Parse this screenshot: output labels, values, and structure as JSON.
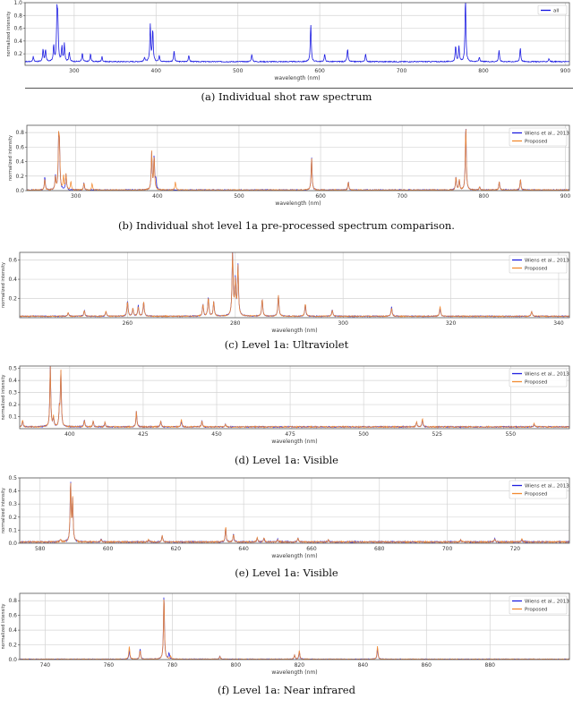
{
  "colors": {
    "wiens": "#1f1fe0",
    "proposed": "#f28a30",
    "raw": "#1010e0",
    "grid": "#d4d4d4",
    "frame": "#555555"
  },
  "panels": [
    {
      "id": "a",
      "caption": "(a) Individual shot raw spectrum",
      "xlabel": "wavelength (nm)",
      "ylabel": "normalized intensity",
      "legend": [
        "all"
      ]
    },
    {
      "id": "b",
      "caption": "(b) Individual shot level 1a pre-processed spectrum comparison.",
      "xlabel": "wavelength (nm)",
      "ylabel": "normalized intensity",
      "legend": [
        "Wiens et al., 2013",
        "Proposed"
      ]
    },
    {
      "id": "c",
      "caption": "(c) Level 1a: Ultraviolet",
      "xlabel": "wavelength (nm)",
      "ylabel": "normalized intensity",
      "legend": [
        "Wiens et al., 2013",
        "Proposed"
      ]
    },
    {
      "id": "d",
      "caption": "(d) Level 1a: Visible",
      "xlabel": "wavelength (nm)",
      "ylabel": "normalized intensity",
      "legend": [
        "Wiens et al., 2013",
        "Proposed"
      ]
    },
    {
      "id": "e",
      "caption": "(e) Level 1a: Visible",
      "xlabel": "wavelength (nm)",
      "ylabel": "normalized intensity",
      "legend": [
        "Wiens et al., 2013",
        "Proposed"
      ]
    },
    {
      "id": "f",
      "caption": "(f) Level 1a: Near infrared",
      "xlabel": "wavelength (nm)",
      "ylabel": "normalized intensity",
      "legend": [
        "Wiens et al., 2013",
        "Proposed"
      ]
    }
  ],
  "chart_data": [
    {
      "type": "line",
      "title": "(a) Individual shot raw spectrum",
      "xlabel": "wavelength (nm)",
      "ylabel": "normalized intensity",
      "xlim": [
        240,
        905
      ],
      "ylim": [
        0.02,
        1.0
      ],
      "xticks": [
        300,
        400,
        500,
        600,
        700,
        800,
        900
      ],
      "yticks": [
        0.2,
        0.4,
        0.6,
        0.8,
        1.0
      ],
      "grid": true,
      "legend_position": "upper right",
      "series": [
        {
          "name": "all",
          "color": "#1010e0",
          "peaks": [
            [
              250,
              0.08
            ],
            [
              262,
              0.2
            ],
            [
              265,
              0.18
            ],
            [
              275,
              0.25
            ],
            [
              279,
              0.72
            ],
            [
              280,
              0.57
            ],
            [
              285,
              0.23
            ],
            [
              288,
              0.28
            ],
            [
              294,
              0.15
            ],
            [
              310,
              0.13
            ],
            [
              320,
              0.12
            ],
            [
              334,
              0.08
            ],
            [
              386,
              0.07
            ],
            [
              393,
              0.57
            ],
            [
              396,
              0.5
            ],
            [
              404,
              0.1
            ],
            [
              422,
              0.17
            ],
            [
              440,
              0.1
            ],
            [
              517,
              0.12
            ],
            [
              589,
              0.59
            ],
            [
              606,
              0.12
            ],
            [
              634,
              0.2
            ],
            [
              656,
              0.12
            ],
            [
              766,
              0.25
            ],
            [
              770,
              0.24
            ],
            [
              778,
              1.0
            ],
            [
              795,
              0.07
            ],
            [
              819,
              0.18
            ],
            [
              845,
              0.22
            ],
            [
              880,
              0.05
            ]
          ]
        }
      ]
    },
    {
      "type": "line",
      "title": "(b) Individual shot level 1a pre-processed spectrum comparison.",
      "xlabel": "wavelength (nm)",
      "ylabel": "normalized intensity",
      "xlim": [
        240,
        905
      ],
      "ylim": [
        0.0,
        0.9
      ],
      "xticks": [
        300,
        400,
        500,
        600,
        700,
        800,
        900
      ],
      "yticks": [
        0.0,
        0.2,
        0.4,
        0.6,
        0.8
      ],
      "grid": true,
      "legend_position": "upper right",
      "series": [
        {
          "name": "Wiens et al., 2013",
          "color": "#1f1fe0",
          "peaks": [
            [
              262,
              0.18
            ],
            [
              275,
              0.2
            ],
            [
              279,
              0.65
            ],
            [
              280,
              0.5
            ],
            [
              288,
              0.22
            ],
            [
              310,
              0.1
            ],
            [
              393,
              0.51
            ],
            [
              396,
              0.47
            ],
            [
              398,
              0.14
            ],
            [
              589,
              0.47
            ],
            [
              634,
              0.12
            ],
            [
              766,
              0.18
            ],
            [
              770,
              0.14
            ],
            [
              778,
              0.9
            ],
            [
              795,
              0.05
            ],
            [
              819,
              0.12
            ],
            [
              845,
              0.15
            ]
          ]
        },
        {
          "name": "Proposed",
          "color": "#f28a30",
          "peaks": [
            [
              262,
              0.16
            ],
            [
              275,
              0.18
            ],
            [
              279,
              0.66
            ],
            [
              280,
              0.52
            ],
            [
              285,
              0.19
            ],
            [
              288,
              0.22
            ],
            [
              294,
              0.12
            ],
            [
              310,
              0.1
            ],
            [
              320,
              0.09
            ],
            [
              393,
              0.52
            ],
            [
              396,
              0.47
            ],
            [
              422,
              0.12
            ],
            [
              589,
              0.45
            ],
            [
              634,
              0.11
            ],
            [
              766,
              0.18
            ],
            [
              770,
              0.14
            ],
            [
              778,
              0.9
            ],
            [
              795,
              0.05
            ],
            [
              819,
              0.11
            ],
            [
              845,
              0.15
            ]
          ]
        }
      ]
    },
    {
      "type": "line",
      "title": "(c) Level 1a: Ultraviolet",
      "xlabel": "wavelength (nm)",
      "ylabel": "normalized intensity",
      "xlim": [
        240,
        342
      ],
      "ylim": [
        0.0,
        0.68
      ],
      "xticks": [
        260,
        280,
        300,
        320,
        340
      ],
      "yticks": [
        0.2,
        0.4,
        0.6
      ],
      "grid": true,
      "legend_position": "upper right",
      "series": [
        {
          "name": "Wiens et al., 2013",
          "color": "#1f1fe0",
          "peaks": [
            [
              249,
              0.04
            ],
            [
              252,
              0.06
            ],
            [
              256,
              0.05
            ],
            [
              260,
              0.16
            ],
            [
              261,
              0.08
            ],
            [
              262,
              0.11
            ],
            [
              263,
              0.15
            ],
            [
              274,
              0.12
            ],
            [
              275,
              0.2
            ],
            [
              276,
              0.15
            ],
            [
              279.5,
              0.66
            ],
            [
              280,
              0.36
            ],
            [
              280.5,
              0.52
            ],
            [
              285,
              0.18
            ],
            [
              288,
              0.22
            ],
            [
              293,
              0.12
            ],
            [
              298,
              0.07
            ],
            [
              309,
              0.1
            ],
            [
              318,
              0.08
            ],
            [
              335,
              0.05
            ]
          ]
        },
        {
          "name": "Proposed",
          "color": "#f28a30",
          "peaks": [
            [
              249,
              0.04
            ],
            [
              252,
              0.06
            ],
            [
              256,
              0.05
            ],
            [
              260,
              0.15
            ],
            [
              261,
              0.08
            ],
            [
              262,
              0.1
            ],
            [
              263,
              0.15
            ],
            [
              274,
              0.12
            ],
            [
              275,
              0.19
            ],
            [
              276,
              0.15
            ],
            [
              279.5,
              0.64
            ],
            [
              280,
              0.35
            ],
            [
              280.5,
              0.51
            ],
            [
              285,
              0.18
            ],
            [
              288,
              0.22
            ],
            [
              293,
              0.13
            ],
            [
              298,
              0.06
            ],
            [
              309,
              0.08
            ],
            [
              318,
              0.1
            ],
            [
              335,
              0.05
            ]
          ]
        }
      ]
    },
    {
      "type": "line",
      "title": "(d) Level 1a: Visible",
      "xlabel": "wavelength (nm)",
      "ylabel": "normalized intensity",
      "xlim": [
        383,
        570
      ],
      "ylim": [
        0.0,
        0.52
      ],
      "xticks": [
        400,
        425,
        450,
        475,
        500,
        525,
        550
      ],
      "yticks": [
        0.1,
        0.2,
        0.3,
        0.4,
        0.5
      ],
      "grid": true,
      "legend_position": "upper right",
      "series": [
        {
          "name": "Wiens et al., 2013",
          "color": "#1f1fe0",
          "peaks": [
            [
              384,
              0.05
            ],
            [
              393.4,
              0.52
            ],
            [
              394.5,
              0.07
            ],
            [
              396.5,
              0.14
            ],
            [
              397,
              0.46
            ],
            [
              405,
              0.06
            ],
            [
              408,
              0.05
            ],
            [
              412,
              0.04
            ],
            [
              422.7,
              0.13
            ],
            [
              431,
              0.05
            ],
            [
              438,
              0.05
            ],
            [
              445,
              0.05
            ],
            [
              453,
              0.02
            ],
            [
              518,
              0.04
            ],
            [
              520,
              0.06
            ],
            [
              558,
              0.02
            ]
          ]
        },
        {
          "name": "Proposed",
          "color": "#f28a30",
          "peaks": [
            [
              384,
              0.06
            ],
            [
              393.4,
              0.51
            ],
            [
              394.5,
              0.08
            ],
            [
              396.5,
              0.13
            ],
            [
              397,
              0.47
            ],
            [
              405,
              0.05
            ],
            [
              408,
              0.05
            ],
            [
              412,
              0.04
            ],
            [
              422.7,
              0.13
            ],
            [
              431,
              0.05
            ],
            [
              438,
              0.06
            ],
            [
              445,
              0.05
            ],
            [
              453,
              0.02
            ],
            [
              518,
              0.04
            ],
            [
              520,
              0.07
            ],
            [
              558,
              0.03
            ]
          ]
        }
      ]
    },
    {
      "type": "line",
      "title": "(e) Level 1a: Visible",
      "xlabel": "wavelength (nm)",
      "ylabel": "normalized intensity",
      "xlim": [
        574,
        736
      ],
      "ylim": [
        0.0,
        0.5
      ],
      "xticks": [
        580,
        600,
        620,
        640,
        660,
        680,
        700,
        720
      ],
      "yticks": [
        0.0,
        0.1,
        0.2,
        0.3,
        0.4,
        0.5
      ],
      "grid": true,
      "legend_position": "upper right",
      "series": [
        {
          "name": "Wiens et al., 2013",
          "color": "#1f1fe0",
          "peaks": [
            [
              586,
              0.02
            ],
            [
              589,
              0.47
            ],
            [
              589.6,
              0.32
            ],
            [
              598,
              0.02
            ],
            [
              612,
              0.02
            ],
            [
              616,
              0.05
            ],
            [
              634.7,
              0.11
            ],
            [
              637,
              0.06
            ],
            [
              644,
              0.03
            ],
            [
              646,
              0.03
            ],
            [
              650,
              0.02
            ],
            [
              656,
              0.03
            ],
            [
              665,
              0.015
            ],
            [
              704,
              0.015
            ],
            [
              714,
              0.025
            ],
            [
              722,
              0.02
            ]
          ]
        },
        {
          "name": "Proposed",
          "color": "#f28a30",
          "peaks": [
            [
              586,
              0.02
            ],
            [
              589,
              0.45
            ],
            [
              589.6,
              0.33
            ],
            [
              598,
              0.02
            ],
            [
              612,
              0.02
            ],
            [
              616,
              0.05
            ],
            [
              634.7,
              0.12
            ],
            [
              637,
              0.06
            ],
            [
              644,
              0.035
            ],
            [
              646,
              0.035
            ],
            [
              650,
              0.02
            ],
            [
              656,
              0.03
            ],
            [
              665,
              0.015
            ],
            [
              704,
              0.02
            ],
            [
              714,
              0.025
            ],
            [
              722,
              0.025
            ]
          ]
        }
      ]
    },
    {
      "type": "line",
      "title": "(f) Level 1a: Near infrared",
      "xlabel": "wavelength (nm)",
      "ylabel": "normalized intensity",
      "xlim": [
        732,
        905
      ],
      "ylim": [
        0.0,
        0.9
      ],
      "xticks": [
        740,
        760,
        780,
        800,
        820,
        840,
        860,
        880
      ],
      "yticks": [
        0.0,
        0.2,
        0.4,
        0.6,
        0.8
      ],
      "grid": true,
      "legend_position": "upper right",
      "series": [
        {
          "name": "Wiens et al., 2013",
          "color": "#1f1fe0",
          "peaks": [
            [
              766.5,
              0.12
            ],
            [
              769.9,
              0.14
            ],
            [
              777.4,
              0.9
            ],
            [
              779,
              0.08
            ],
            [
              795,
              0.04
            ],
            [
              818.5,
              0.06
            ],
            [
              820,
              0.1
            ],
            [
              844.6,
              0.15
            ]
          ]
        },
        {
          "name": "Proposed",
          "color": "#f28a30",
          "peaks": [
            [
              766.5,
              0.18
            ],
            [
              769.9,
              0.12
            ],
            [
              777.4,
              0.88
            ],
            [
              779.5,
              0.04
            ],
            [
              795,
              0.04
            ],
            [
              818.5,
              0.06
            ],
            [
              820,
              0.12
            ],
            [
              844.6,
              0.18
            ]
          ]
        }
      ]
    }
  ]
}
